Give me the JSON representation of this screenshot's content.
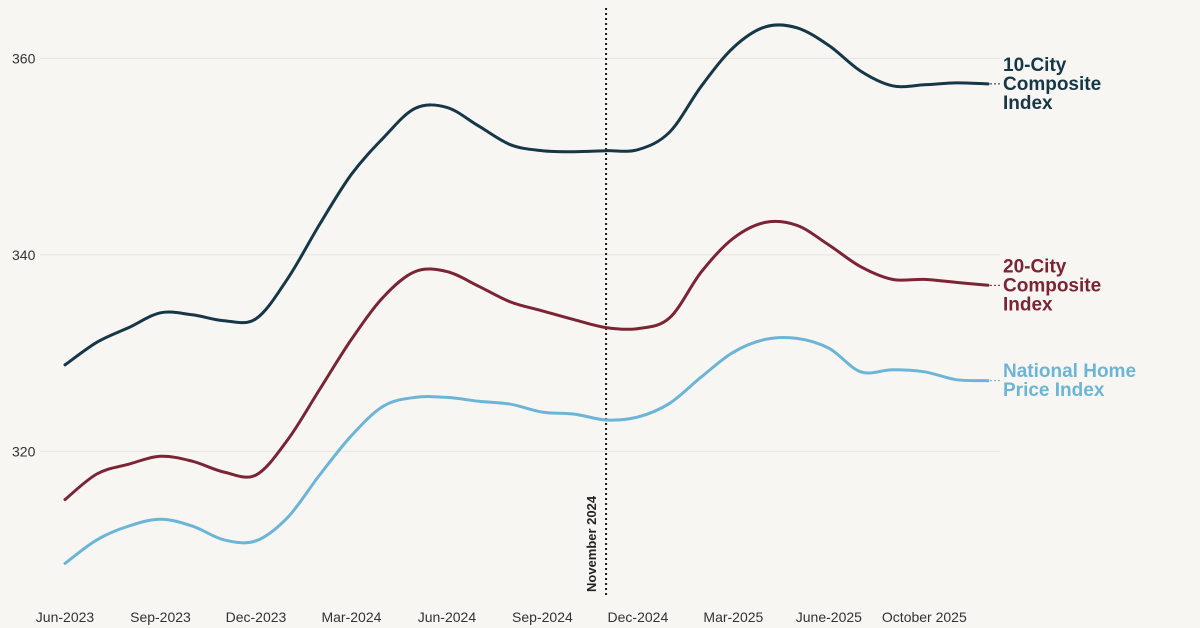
{
  "chart_data": {
    "type": "line",
    "title": "",
    "xlabel": "",
    "ylabel": "",
    "x_tick_labels": [
      "Jun-2023",
      "Sep-2023",
      "Dec-2023",
      "Mar-2024",
      "Jun-2024",
      "Sep-2024",
      "Dec-2024",
      "Mar-2025",
      "June-2025",
      "October 2025"
    ],
    "y_ticks": [
      320,
      340,
      360
    ],
    "ylim": [
      306,
      364
    ],
    "grid": "horizontal",
    "annotation": {
      "label": "November 2024",
      "x": "2024-11",
      "style": "dotted vertical line"
    },
    "x": [
      "2023-06",
      "2023-07",
      "2023-08",
      "2023-09",
      "2023-10",
      "2023-11",
      "2023-12",
      "2024-01",
      "2024-02",
      "2024-03",
      "2024-04",
      "2024-05",
      "2024-06",
      "2024-07",
      "2024-08",
      "2024-09",
      "2024-10",
      "2024-11",
      "2024-12",
      "2025-01",
      "2025-02",
      "2025-03",
      "2025-04",
      "2025-05",
      "2025-06",
      "2025-07",
      "2025-08",
      "2025-09",
      "2025-10",
      "2025-11"
    ],
    "series": [
      {
        "name": "10-City Composite Index",
        "color": "#163747",
        "values": [
          328.8,
          331.1,
          332.6,
          334.1,
          333.9,
          333.3,
          333.5,
          337.6,
          343.1,
          348.2,
          351.9,
          354.9,
          355.0,
          353.1,
          351.2,
          350.6,
          350.5,
          350.6,
          350.7,
          352.5,
          357.2,
          361.1,
          363.2,
          363.1,
          361.3,
          358.7,
          357.2,
          357.3,
          357.5,
          357.4
        ]
      },
      {
        "name": "20-City Composite Index",
        "color": "#7a2434",
        "values": [
          315.1,
          317.7,
          318.7,
          319.5,
          319.0,
          317.9,
          317.6,
          321.2,
          326.3,
          331.4,
          335.7,
          338.3,
          338.3,
          336.8,
          335.2,
          334.3,
          333.4,
          332.6,
          332.5,
          333.6,
          338.3,
          341.7,
          343.3,
          343.0,
          341.0,
          338.8,
          337.5,
          337.5,
          337.2,
          336.9
        ]
      },
      {
        "name": "National Home Price Index",
        "color": "#6cb5d6",
        "values": [
          308.6,
          311.0,
          312.4,
          313.1,
          312.4,
          311.0,
          310.9,
          313.3,
          317.6,
          321.6,
          324.6,
          325.5,
          325.5,
          325.1,
          324.8,
          324.0,
          323.8,
          323.2,
          323.5,
          324.9,
          327.6,
          330.1,
          331.4,
          331.5,
          330.5,
          328.1,
          328.3,
          328.1,
          327.3,
          327.2
        ]
      }
    ],
    "series_labels": [
      {
        "lines": [
          "10-City",
          "Composite",
          "Index"
        ]
      },
      {
        "lines": [
          "20-City",
          "Composite",
          "Index"
        ]
      },
      {
        "lines": [
          "National Home",
          "Price Index"
        ]
      }
    ]
  }
}
